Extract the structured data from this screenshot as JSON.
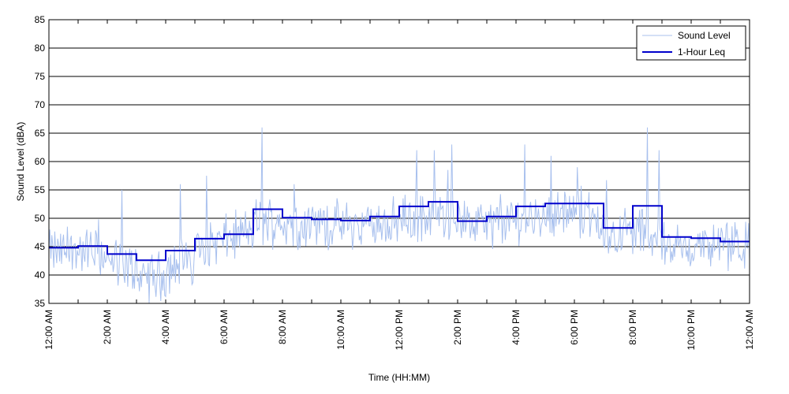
{
  "chart_data": {
    "type": "line",
    "xlabel": "Time (HH:MM)",
    "ylabel": "Sound Level (dBA)",
    "xlim": [
      0,
      24
    ],
    "ylim": [
      35,
      85
    ],
    "yticks": [
      35,
      40,
      45,
      50,
      55,
      60,
      65,
      70,
      75,
      80,
      85
    ],
    "xtick_hours": [
      0,
      2,
      4,
      6,
      8,
      10,
      12,
      14,
      16,
      18,
      20,
      22,
      24
    ],
    "xtick_labels": [
      "12:00 AM",
      "2:00 AM",
      "4:00 AM",
      "6:00 AM",
      "8:00 AM",
      "10:00 AM",
      "12:00 PM",
      "2:00 PM",
      "4:00 PM",
      "6:00 PM",
      "8:00 PM",
      "10:00 PM",
      "12:00 AM"
    ],
    "grid": "horizontal",
    "legend_position": "top-right",
    "legend": [
      "Sound Level",
      "1-Hour Leq"
    ],
    "colors": {
      "sound_level": "#a8c0ee",
      "leq": "#0000cc"
    },
    "series": [
      {
        "name": "1-Hour Leq",
        "step": true,
        "hours": [
          0,
          1,
          2,
          3,
          4,
          5,
          6,
          7,
          8,
          9,
          10,
          11,
          12,
          13,
          14,
          15,
          16,
          17,
          18,
          19,
          20,
          21,
          22,
          23
        ],
        "values": [
          44.8,
          45.1,
          43.7,
          42.6,
          44.3,
          46.4,
          47.2,
          51.6,
          50.1,
          49.8,
          49.6,
          50.3,
          52.1,
          52.9,
          49.5,
          50.3,
          52.1,
          52.6,
          52.6,
          48.3,
          52.2,
          46.7,
          46.5,
          45.9
        ]
      },
      {
        "name": "Sound Level",
        "sample_minutes": 2,
        "hourly_baseline": [
          44,
          44.5,
          42,
          39.5,
          41,
          45.5,
          46.5,
          49.5,
          49,
          49,
          48.5,
          49,
          50,
          50.5,
          49,
          49,
          50,
          51,
          51,
          47,
          48,
          45,
          45,
          45
        ],
        "spikes": [
          {
            "hour": 2.5,
            "value": 55
          },
          {
            "hour": 4.5,
            "value": 56
          },
          {
            "hour": 5.4,
            "value": 57.5
          },
          {
            "hour": 7.3,
            "value": 66
          },
          {
            "hour": 8.4,
            "value": 56
          },
          {
            "hour": 12.6,
            "value": 62
          },
          {
            "hour": 13.2,
            "value": 62
          },
          {
            "hour": 13.8,
            "value": 63
          },
          {
            "hour": 16.3,
            "value": 63
          },
          {
            "hour": 17.2,
            "value": 61
          },
          {
            "hour": 18.1,
            "value": 59
          },
          {
            "hour": 20.5,
            "value": 66
          },
          {
            "hour": 20.9,
            "value": 62
          }
        ]
      }
    ]
  }
}
